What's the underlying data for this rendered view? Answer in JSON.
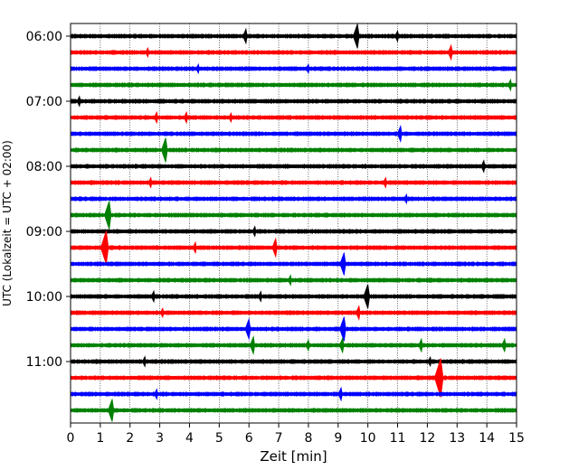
{
  "chart_data": {
    "type": "line",
    "chart_kind": "helicorder",
    "xlabel": "Zeit  [min]",
    "ylabel": "UTC (Lokalzeit = UTC + 02:00)",
    "xlim": [
      0,
      15
    ],
    "x_ticks": [
      0,
      1,
      2,
      3,
      4,
      5,
      6,
      7,
      8,
      9,
      10,
      11,
      12,
      13,
      14,
      15
    ],
    "y_ticks": [
      "06:00",
      "07:00",
      "08:00",
      "09:00",
      "10:00",
      "11:00"
    ],
    "vertical_grid": "dotted",
    "trace_colors": [
      "#000000",
      "#ff0000",
      "#0000ff",
      "#008000"
    ],
    "traces": [
      {
        "start": "06:00",
        "events": [
          {
            "t": 5.9,
            "amp": 0.55
          },
          {
            "t": 9.65,
            "amp": 1.1
          },
          {
            "t": 11.0,
            "amp": 0.35
          }
        ]
      },
      {
        "start": "06:15",
        "events": [
          {
            "t": 12.8,
            "amp": 0.55
          },
          {
            "t": 2.6,
            "amp": 0.25
          }
        ]
      },
      {
        "start": "06:30",
        "events": [
          {
            "t": 4.3,
            "amp": 0.25
          },
          {
            "t": 8.0,
            "amp": 0.25
          }
        ]
      },
      {
        "start": "06:45",
        "events": [
          {
            "t": 14.8,
            "amp": 0.35
          }
        ]
      },
      {
        "start": "07:00",
        "events": [
          {
            "t": 0.3,
            "amp": 0.3
          }
        ]
      },
      {
        "start": "07:15",
        "events": [
          {
            "t": 2.9,
            "amp": 0.35
          },
          {
            "t": 3.9,
            "amp": 0.35
          },
          {
            "t": 5.4,
            "amp": 0.25
          }
        ]
      },
      {
        "start": "07:30",
        "events": [
          {
            "t": 11.1,
            "amp": 0.6
          }
        ]
      },
      {
        "start": "07:45",
        "events": [
          {
            "t": 3.2,
            "amp": 1.1
          }
        ]
      },
      {
        "start": "08:00",
        "events": [
          {
            "t": 13.9,
            "amp": 0.4
          }
        ]
      },
      {
        "start": "08:15",
        "events": [
          {
            "t": 2.7,
            "amp": 0.3
          },
          {
            "t": 10.6,
            "amp": 0.3
          }
        ]
      },
      {
        "start": "08:30",
        "events": [
          {
            "t": 11.3,
            "amp": 0.25
          }
        ]
      },
      {
        "start": "08:45",
        "events": [
          {
            "t": 1.3,
            "amp": 1.3
          }
        ]
      },
      {
        "start": "09:00",
        "events": [
          {
            "t": 6.2,
            "amp": 0.3
          }
        ]
      },
      {
        "start": "09:15",
        "events": [
          {
            "t": 1.2,
            "amp": 1.6
          },
          {
            "t": 6.9,
            "amp": 0.75
          },
          {
            "t": 4.2,
            "amp": 0.35
          }
        ]
      },
      {
        "start": "09:30",
        "events": [
          {
            "t": 9.2,
            "amp": 1.0
          }
        ]
      },
      {
        "start": "09:45",
        "events": [
          {
            "t": 7.4,
            "amp": 0.3
          }
        ]
      },
      {
        "start": "10:00",
        "events": [
          {
            "t": 10.0,
            "amp": 1.1
          },
          {
            "t": 2.8,
            "amp": 0.35
          },
          {
            "t": 6.4,
            "amp": 0.3
          }
        ]
      },
      {
        "start": "10:15",
        "events": [
          {
            "t": 9.7,
            "amp": 0.5
          },
          {
            "t": 3.1,
            "amp": 0.25
          }
        ]
      },
      {
        "start": "10:30",
        "events": [
          {
            "t": 6.0,
            "amp": 0.85
          },
          {
            "t": 9.2,
            "amp": 1.1
          }
        ]
      },
      {
        "start": "10:45",
        "events": [
          {
            "t": 6.15,
            "amp": 0.7
          },
          {
            "t": 9.15,
            "amp": 0.55
          },
          {
            "t": 11.8,
            "amp": 0.45
          },
          {
            "t": 14.6,
            "amp": 0.45
          },
          {
            "t": 8.0,
            "amp": 0.35
          }
        ]
      },
      {
        "start": "11:00",
        "events": [
          {
            "t": 2.5,
            "amp": 0.3
          },
          {
            "t": 12.1,
            "amp": 0.25
          }
        ]
      },
      {
        "start": "11:15",
        "events": [
          {
            "t": 12.45,
            "amp": 1.9
          }
        ]
      },
      {
        "start": "11:30",
        "events": [
          {
            "t": 9.1,
            "amp": 0.45
          },
          {
            "t": 2.9,
            "amp": 0.3
          }
        ]
      },
      {
        "start": "11:45",
        "events": [
          {
            "t": 1.4,
            "amp": 1.0
          }
        ]
      }
    ]
  }
}
